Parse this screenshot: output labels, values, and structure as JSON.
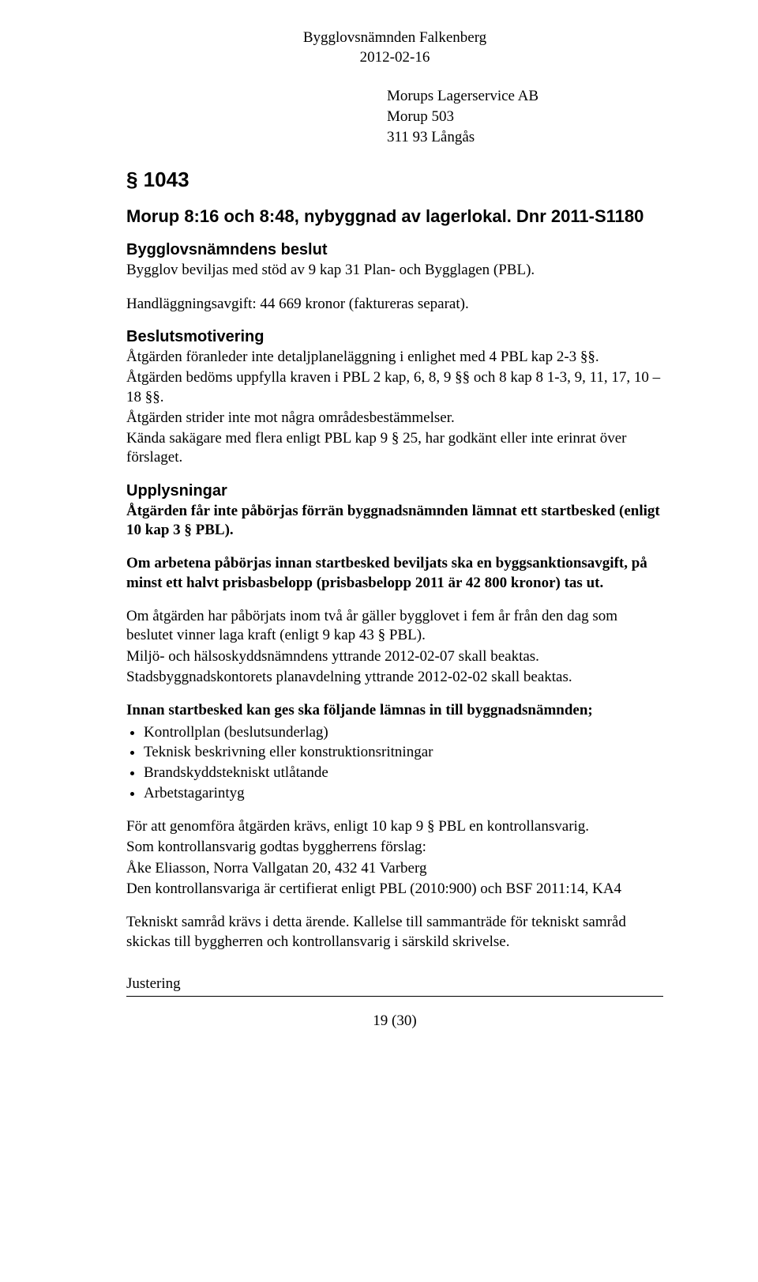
{
  "header": {
    "line1": "Bygglovsnämnden Falkenberg",
    "line2": "2012-02-16"
  },
  "address": {
    "line1": "Morups Lagerservice AB",
    "line2": "Morup 503",
    "line3": "311 93 Långås"
  },
  "section_number": "§ 1043",
  "title": "Morup 8:16 och 8:48, nybyggnad av lagerlokal. Dnr 2011-S1180",
  "beslut": {
    "heading": "Bygglovsnämndens beslut",
    "line1": "Bygglov beviljas med stöd av 9 kap 31 Plan- och Bygglagen (PBL).",
    "line2": "Handläggningsavgift: 44 669 kronor (faktureras separat)."
  },
  "motivering": {
    "heading": "Beslutsmotivering",
    "p1": "Åtgärden föranleder inte detaljplaneläggning i enlighet med 4 PBL kap 2-3 §§.",
    "p2": "Åtgärden bedöms uppfylla kraven i PBL 2 kap, 6, 8, 9 §§ och 8 kap 8 1-3, 9, 11, 17, 10 – 18 §§.",
    "p3": "Åtgärden strider inte mot några områdesbestämmelser.",
    "p4": "Kända sakägare med flera enligt PBL kap 9 § 25, har godkänt eller inte erinrat över förslaget."
  },
  "upplysningar": {
    "heading": "Upplysningar",
    "p1": "Åtgärden får inte påbörjas förrän byggnadsnämnden lämnat ett startbesked (enligt 10 kap 3 § PBL).",
    "p2": "Om arbetena påbörjas innan startbesked beviljats ska en byggsanktionsavgift, på minst ett halvt prisbasbelopp (prisbasbelopp 2011 är 42 800 kronor) tas ut.",
    "p3a": "Om åtgärden har påbörjats inom två år gäller bygglovet i fem år från den dag som beslutet vinner laga kraft (enligt 9 kap 43 § PBL).",
    "p3b": "Miljö- och hälsoskyddsnämndens yttrande 2012-02-07  skall beaktas.",
    "p3c": "Stadsbyggnadskontorets planavdelning yttrande 2012-02-02 skall beaktas.",
    "listhead": "Innan startbesked kan ges ska följande lämnas in till byggnadsnämnden;",
    "items": [
      "Kontrollplan (beslutsunderlag)",
      "Teknisk beskrivning eller konstruktionsritningar",
      "Brandskyddstekniskt utlåtande",
      "Arbetstagarintyg"
    ],
    "p4a": "För att genomföra åtgärden krävs, enligt 10 kap 9 § PBL en kontrollansvarig.",
    "p4b": "Som kontrollansvarig godtas byggherrens förslag:",
    "p4c": "Åke Eliasson, Norra Vallgatan  20, 432 41 Varberg",
    "p4d": "Den kontrollansvariga är certifierat enligt PBL (2010:900) och BSF 2011:14, KA4",
    "p5": "Tekniskt samråd krävs i detta ärende. Kallelse till sammanträde för tekniskt samråd skickas till byggherren och kontrollansvarig i särskild skrivelse."
  },
  "footer": {
    "label": "Justering",
    "pagenum": "19 (30)"
  }
}
